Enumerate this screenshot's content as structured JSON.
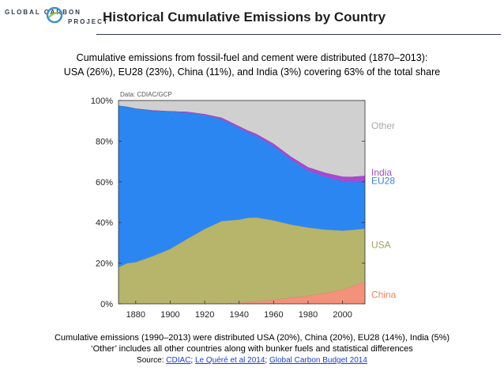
{
  "header": {
    "logo_line1": "GLOBAL CARBON",
    "logo_line2": "PROJECT",
    "title": "Historical Cumulative Emissions by Country"
  },
  "subtitle": {
    "line1": "Cumulative emissions from fossil-fuel and cement were distributed (1870–2013):",
    "line2": "USA (26%), EU28 (23%), China (11%), and India (3%) covering 63% of the total share"
  },
  "footer": {
    "line1": "Cumulative emissions (1990–2013) were distributed USA (20%), China (20%), EU28 (14%), India (5%)",
    "line2": "‘Other’ includes all other countries along with bunker fuels and statistical differences",
    "source_prefix": "Source: ",
    "source_cdiac": "CDIAC",
    "sep1": "; ",
    "source_lequere": "Le Quéré et al 2014",
    "sep2": "; ",
    "source_gcb": "Global Carbon Budget 2014"
  },
  "colors": {
    "china": "#f4917a",
    "usa": "#b7b46b",
    "eu28": "#2c86f2",
    "india": "#a848d3",
    "other": "#d0d0d0",
    "china_label": "#f0845e",
    "usa_label": "#9fa05f",
    "eu28_label": "#3b7fd6",
    "india_label": "#9b4fb8",
    "other_label": "#a9a9a9"
  },
  "chart_data": {
    "type": "area",
    "stacked": true,
    "title": "",
    "annotation": "Data: CDIAC/GCP",
    "xlabel": "",
    "ylabel": "",
    "xlim": [
      1870,
      2013
    ],
    "ylim": [
      0,
      100
    ],
    "x_ticks": [
      1880,
      1900,
      1920,
      1940,
      1960,
      1980,
      2000
    ],
    "y_ticks": [
      0,
      20,
      40,
      60,
      80,
      100
    ],
    "y_tick_labels": [
      "0%",
      "20%",
      "40%",
      "60%",
      "80%",
      "100%"
    ],
    "grid": false,
    "legend_placement": "right",
    "x": [
      1870,
      1875,
      1880,
      1890,
      1900,
      1910,
      1920,
      1930,
      1940,
      1945,
      1950,
      1960,
      1970,
      1980,
      1990,
      2000,
      2005,
      2013
    ],
    "series": [
      {
        "name": "China",
        "key": "china",
        "values": [
          0,
          0,
          0,
          0,
          0,
          0,
          0,
          0.2,
          0.6,
          0.8,
          1.2,
          2.0,
          3.0,
          4.0,
          5.3,
          7.0,
          8.5,
          11.0
        ]
      },
      {
        "name": "USA",
        "key": "usa",
        "values": [
          18.0,
          20.0,
          20.5,
          23.5,
          27.0,
          32.0,
          36.8,
          40.5,
          40.8,
          41.5,
          41.3,
          39.0,
          36.0,
          33.5,
          31.2,
          29.0,
          27.8,
          26.0
        ]
      },
      {
        "name": "EU28",
        "key": "eu28",
        "values": [
          79.5,
          77.0,
          75.5,
          71.5,
          67.5,
          62.0,
          56.0,
          50.0,
          45.0,
          42.0,
          40.0,
          36.5,
          32.0,
          28.0,
          26.0,
          24.2,
          23.6,
          23.0
        ]
      },
      {
        "name": "India",
        "key": "india",
        "values": [
          0,
          0,
          0.1,
          0.2,
          0.3,
          0.5,
          0.6,
          0.8,
          1.0,
          1.0,
          1.1,
          1.3,
          1.5,
          1.7,
          2.0,
          2.4,
          2.6,
          3.0
        ]
      },
      {
        "name": "Other",
        "key": "other",
        "values": [
          2.5,
          3.0,
          3.9,
          4.8,
          5.2,
          5.5,
          6.6,
          8.5,
          12.6,
          14.7,
          16.4,
          21.2,
          27.5,
          32.8,
          35.5,
          37.4,
          37.5,
          37.0
        ]
      }
    ],
    "labels_top_to_bottom": [
      "Other",
      "India",
      "EU28",
      "USA",
      "China"
    ]
  }
}
